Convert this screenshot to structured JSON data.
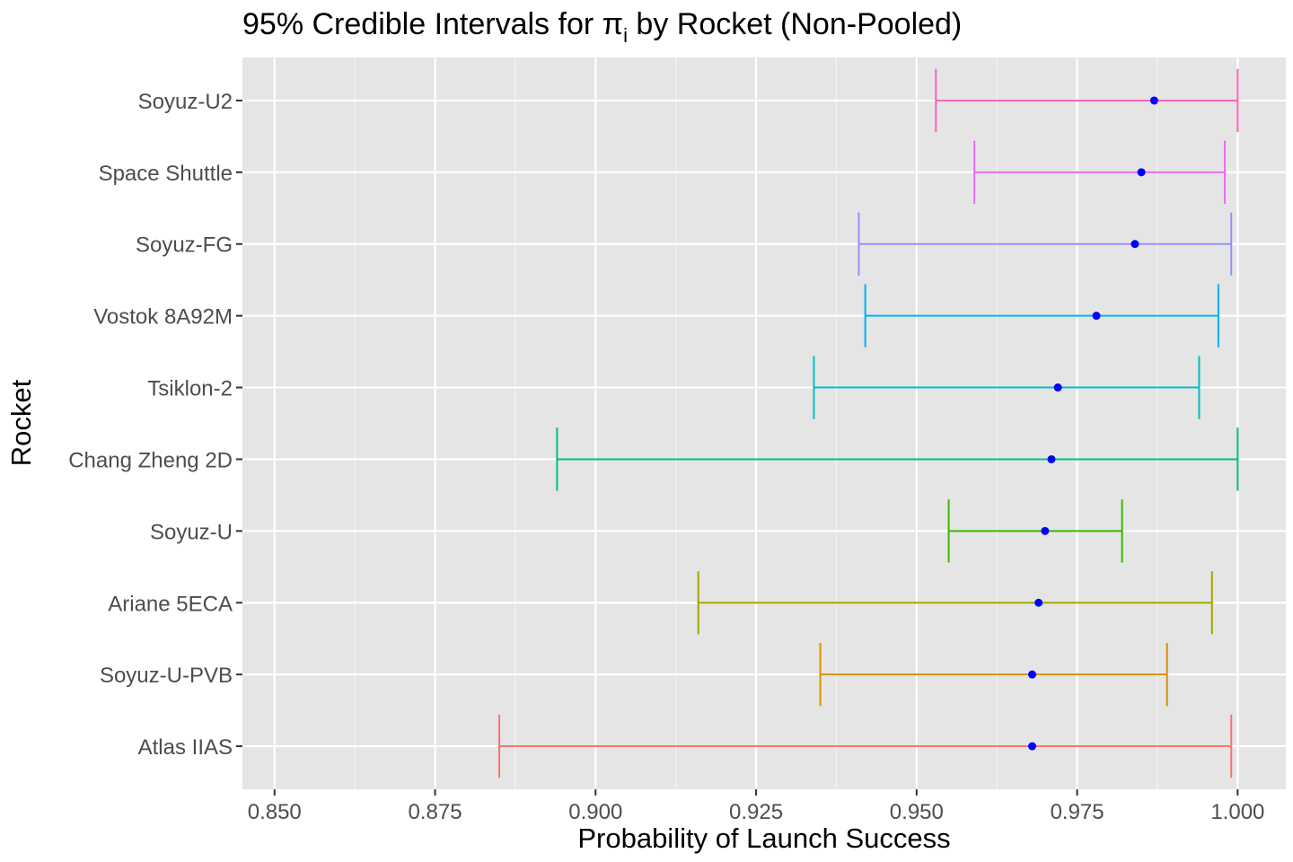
{
  "chart_data": {
    "type": "errorbar",
    "title_prefix": "95% Credible Intervals for π",
    "title_subscript": "i",
    "title_suffix": " by Rocket (Non-Pooled)",
    "xlabel": "Probability of Launch Success",
    "ylabel": "Rocket",
    "xlim": [
      0.845,
      1.0075
    ],
    "xticks": [
      0.85,
      0.875,
      0.9,
      0.925,
      0.95,
      0.975,
      1.0
    ],
    "xtick_labels": [
      "0.850",
      "0.875",
      "0.900",
      "0.925",
      "0.950",
      "0.975",
      "1.000"
    ],
    "grid": true,
    "point_color": "#0000ff",
    "panel_background": "#e5e5e5",
    "categories": [
      "Atlas IIAS",
      "Soyuz-U-PVB",
      "Ariane 5ECA",
      "Soyuz-U",
      "Chang Zheng 2D",
      "Tsiklon-2",
      "Vostok 8A92M",
      "Soyuz-FG",
      "Space Shuttle",
      "Soyuz-U2"
    ],
    "series": [
      {
        "rocket": "Atlas IIAS",
        "lower": 0.885,
        "estimate": 0.968,
        "upper": 0.999,
        "color": "#F8766D"
      },
      {
        "rocket": "Soyuz-U-PVB",
        "lower": 0.935,
        "estimate": 0.968,
        "upper": 0.989,
        "color": "#D89000"
      },
      {
        "rocket": "Ariane 5ECA",
        "lower": 0.916,
        "estimate": 0.969,
        "upper": 0.996,
        "color": "#A3A500"
      },
      {
        "rocket": "Soyuz-U",
        "lower": 0.955,
        "estimate": 0.97,
        "upper": 0.982,
        "color": "#39B600"
      },
      {
        "rocket": "Chang Zheng 2D",
        "lower": 0.894,
        "estimate": 0.971,
        "upper": 1.0,
        "color": "#00BF7D"
      },
      {
        "rocket": "Tsiklon-2",
        "lower": 0.934,
        "estimate": 0.972,
        "upper": 0.994,
        "color": "#00BFC4"
      },
      {
        "rocket": "Vostok 8A92M",
        "lower": 0.942,
        "estimate": 0.978,
        "upper": 0.997,
        "color": "#00B0F6"
      },
      {
        "rocket": "Soyuz-FG",
        "lower": 0.941,
        "estimate": 0.984,
        "upper": 0.999,
        "color": "#9590FF"
      },
      {
        "rocket": "Space Shuttle",
        "lower": 0.959,
        "estimate": 0.985,
        "upper": 0.998,
        "color": "#E76BF3"
      },
      {
        "rocket": "Soyuz-U2",
        "lower": 0.953,
        "estimate": 0.987,
        "upper": 1.0,
        "color": "#FF62BC"
      }
    ]
  }
}
